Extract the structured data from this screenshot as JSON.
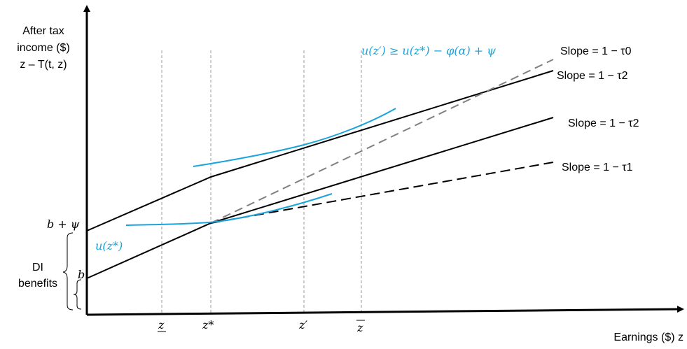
{
  "axes": {
    "y_label_lines": [
      "After tax",
      "income ($)",
      "z – T(t, z)"
    ],
    "x_label": "Earnings ($) z"
  },
  "x_ticks": {
    "z_low": "z",
    "z_star": "z*",
    "z_prime": "z′",
    "z_bar": "z"
  },
  "y_ticks": {
    "b_plus_psi": "b + ψ",
    "b": "b"
  },
  "brace_label_lines": [
    "DI",
    "benefits"
  ],
  "line_labels": {
    "tau0": "Slope = 1 − τ0",
    "tau2_upper": "Slope = 1 − τ2",
    "tau2_lower": "Slope = 1 − τ2",
    "tau1": "Slope = 1 − τ1"
  },
  "curve_labels": {
    "u_z_star": "u(z*)",
    "condition": "u(z′) ≥ u(z*) − φ(α) + ψ"
  },
  "colors": {
    "axis": "#000000",
    "budget_line": "#000000",
    "dashed_gray": "#808080",
    "guide": "#9a9a9a",
    "indifference": "#1aa3dc"
  }
}
